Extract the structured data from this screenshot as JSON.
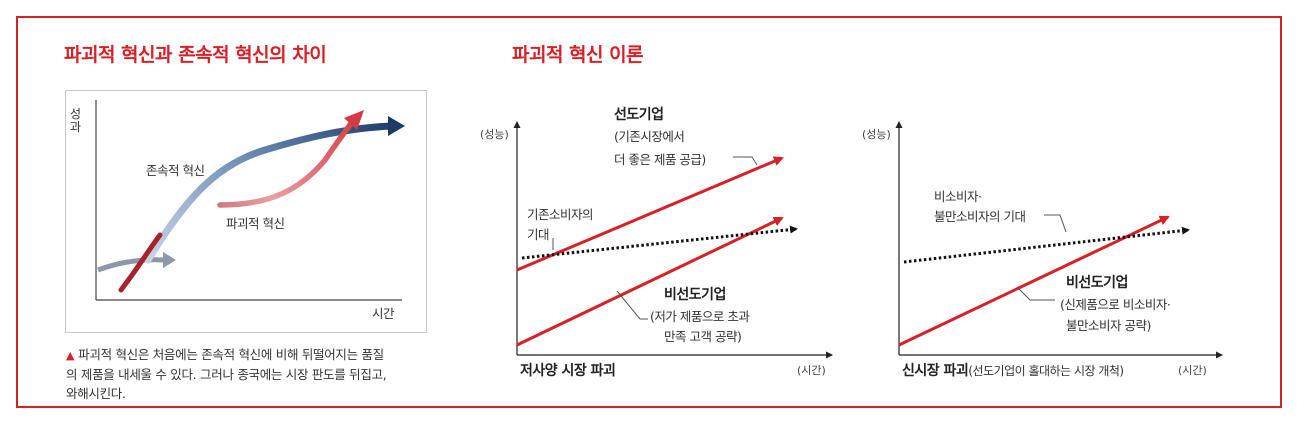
{
  "titles": {
    "left": "파괴적 혁신과 존속적 혁신의 차이",
    "right": "파괴적 혁신 이론"
  },
  "left_chart": {
    "y_axis": "성과",
    "x_axis": "시간",
    "sustaining_label": "존속적 혁신",
    "disruptive_label": "파괴적 혁신",
    "caption_line1": "파괴적 혁신은 처음에는 존속적 혁신에 비해 뒤떨어지는 품질",
    "caption_line2": "의 제품을 내세울 수 있다. 그러나 종국에는 시장 판도를 뒤집고,",
    "caption_line3": "와해시킨다."
  },
  "chart_low_end": {
    "y_axis": "(성능)",
    "x_axis": "(시간)",
    "title": "저사양 시장 파괴",
    "leader_line1": "선도기업",
    "leader_line2": "(기존시장에서",
    "leader_line3": "더 좋은 제품 공급)",
    "expect_line1": "기존소비자의",
    "expect_line2": "기대",
    "nonleader_line1": "비선도기업",
    "nonleader_line2": "(저가 제품으로 초과",
    "nonleader_line3": "만족 고객 공략)"
  },
  "chart_new_market": {
    "y_axis": "(성능)",
    "x_axis": "(시간)",
    "title_bold": "신시장 파괴",
    "title_rest": "(선도기업이 홀대하는 시장 개척)",
    "expect_line1": "비소비자·",
    "expect_line2": "불만소비자의 기대",
    "nonleader_line1": "비선도기업",
    "nonleader_line2": "(신제품으로 비소비자·",
    "nonleader_line3": "불만소비자 공략)"
  },
  "colors": {
    "accent_red": "#d72027",
    "sustaining_blue": "#2e4a74",
    "disruptive_red": "#c9333a"
  }
}
